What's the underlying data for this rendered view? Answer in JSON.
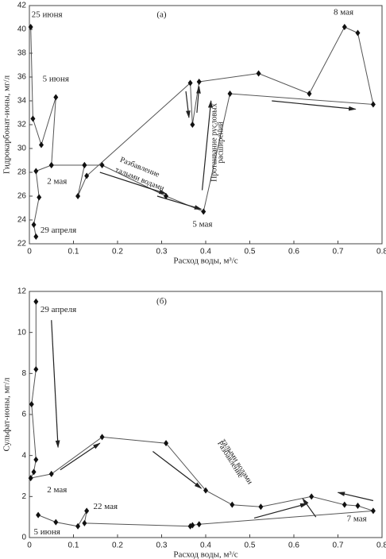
{
  "chart_data": [
    {
      "type": "line",
      "title": "(а)",
      "ylabel": "Гидрокарбонат-ионы, мг/л",
      "xlabel": "Расход воды, м³/с",
      "color": "#555555",
      "x": [
        0.015,
        0.01,
        0.022,
        0.015,
        0.05,
        0.125,
        0.165,
        0.31,
        0.395,
        0.455,
        0.78,
        0.745,
        0.715,
        0.635,
        0.52,
        0.385,
        0.37,
        0.365,
        0.13,
        0.11,
        0.125,
        0.05,
        0.06,
        0.027,
        0.008,
        0.003
      ],
      "values": [
        22.6,
        23.6,
        25.9,
        28.1,
        28.6,
        28.6,
        28.6,
        26.0,
        24.7,
        34.6,
        33.7,
        39.7,
        40.2,
        34.6,
        36.3,
        35.6,
        32.0,
        35.5,
        27.7,
        26.0,
        28.6,
        28.6,
        34.3,
        30.3,
        32.5,
        40.2
      ],
      "xlim": [
        0,
        0.8
      ],
      "ylim": [
        22,
        42
      ],
      "xticks": [
        0,
        0.1,
        0.2,
        0.3,
        0.4,
        0.5,
        0.6,
        0.7,
        0.8
      ],
      "yticks": [
        22,
        24,
        26,
        28,
        30,
        32,
        34,
        36,
        38,
        40,
        42
      ],
      "annotations": [
        "25 июня",
        "5 июня",
        "2 мая",
        "29 апреля",
        "5 мая",
        "8 мая",
        "Разбавление",
        "талыми водами",
        "Протаивание русловых",
        "расширений"
      ]
    },
    {
      "type": "line",
      "title": "(б)",
      "ylabel": "Сульфат-ионы, мг/л",
      "xlabel": "Расход воды, м³/с",
      "color": "#555555",
      "x": [
        0.015,
        0.015,
        0.005,
        0.015,
        0.01,
        0.003,
        0.05,
        0.165,
        0.31,
        0.4,
        0.46,
        0.525,
        0.64,
        0.715,
        0.745,
        0.78,
        0.385,
        0.37,
        0.365,
        0.125,
        0.13,
        0.11,
        0.06,
        0.02
      ],
      "values": [
        11.5,
        8.2,
        6.5,
        3.8,
        3.2,
        2.9,
        3.1,
        4.9,
        4.6,
        2.3,
        1.6,
        1.5,
        2.0,
        1.6,
        1.55,
        1.3,
        0.65,
        0.6,
        0.55,
        0.7,
        1.3,
        0.55,
        0.75,
        1.1
      ],
      "xlim": [
        0,
        0.8
      ],
      "ylim": [
        0,
        12
      ],
      "xticks": [
        0,
        0.1,
        0.2,
        0.3,
        0.4,
        0.5,
        0.6,
        0.7,
        0.8
      ],
      "yticks": [
        0,
        2,
        4,
        6,
        8,
        10,
        12
      ],
      "annotations": [
        "29 апреля",
        "2 мая",
        "22 мая",
        "5 июня",
        "7 мая",
        "Разбавление",
        "талыми водами"
      ]
    }
  ]
}
